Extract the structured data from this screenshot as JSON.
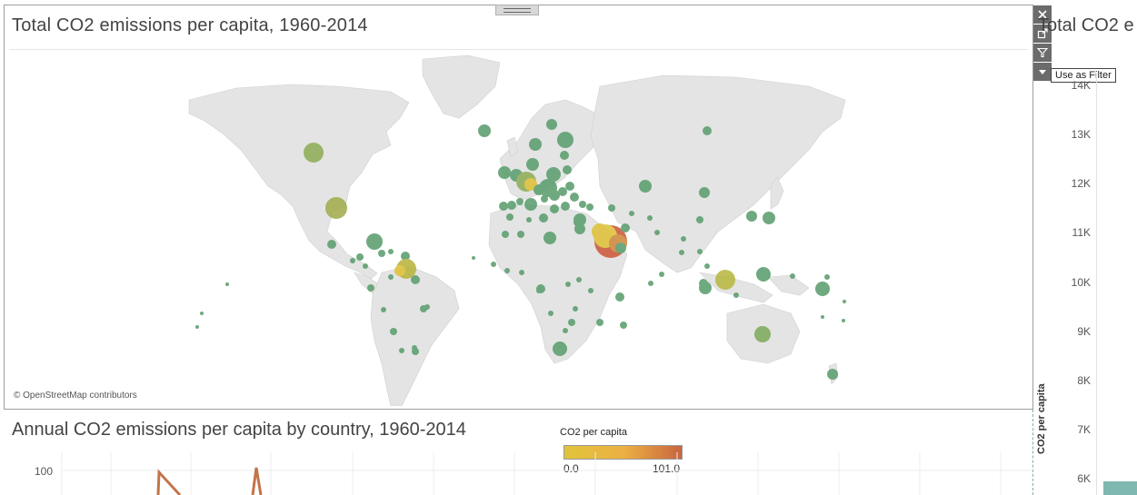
{
  "map_panel": {
    "title": "Total CO2 emissions per capita, 1960-2014",
    "credit": "© OpenStreetMap contributors"
  },
  "toolbar": {
    "buttons": [
      {
        "icon": "close-icon"
      },
      {
        "icon": "pop-out-icon"
      },
      {
        "icon": "filter-icon"
      },
      {
        "icon": "more-options-icon"
      }
    ],
    "tooltip": "Use as Filter"
  },
  "right_panel": {
    "title": "Total CO2 e",
    "y_ticks": [
      "14K",
      "13K",
      "12K",
      "11K",
      "10K",
      "9K",
      "8K",
      "7K",
      "6K"
    ],
    "y_axis_title": "CO2 per capita"
  },
  "line_panel": {
    "title": "Annual CO2 emissions per capita by country, 1960-2014",
    "y_tick": "100"
  },
  "legend": {
    "title": "CO2 per capita",
    "min": "0.0",
    "max": "101.0",
    "colors": [
      "#e0c43a",
      "#ecb144",
      "#c9653f"
    ]
  },
  "colors": {
    "land": "#e4e4e4",
    "bubble_green": "#5c9e6e",
    "bubble_olive": "#a3ad4e",
    "bubble_yellow": "#dfc13a",
    "bubble_red": "#cd5a3a",
    "line": "#c3744a"
  }
}
